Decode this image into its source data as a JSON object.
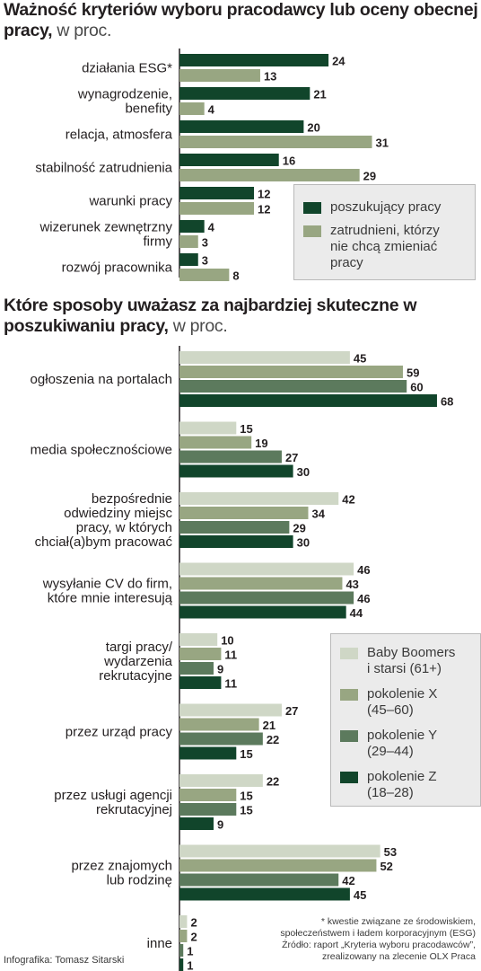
{
  "chart_data": [
    {
      "type": "bar",
      "orientation": "horizontal",
      "title": "Ważność kryteriów wyboru pracodawcy lub oceny obecnej pracy,",
      "unit": "w proc.",
      "categories": [
        "działania ESG*",
        "wynagrodzenie,\nbenefity",
        "relacja, atmosfera",
        "stabilność zatrudnienia",
        "warunki pracy",
        "wizerunek zewnętrzny\nfirmy",
        "rozwój pracownika"
      ],
      "series": [
        {
          "name": "poszukujący pracy",
          "color": "#11452b",
          "values": [
            24,
            21,
            20,
            16,
            12,
            4,
            3
          ]
        },
        {
          "name": "zatrudnieni, którzy\nnie chcą zmieniać\npracy",
          "color": "#98a682",
          "values": [
            13,
            4,
            31,
            29,
            12,
            3,
            8
          ]
        }
      ],
      "legend": "bottom-right",
      "grid": false
    },
    {
      "type": "bar",
      "orientation": "horizontal",
      "title": "Które sposoby uważasz za najbardziej skuteczne w poszukiwaniu pracy,",
      "unit": "w proc.",
      "categories": [
        "ogłoszenia na portalach",
        "media społecznościowe",
        "bezpośrednie\nodwiedziny miejsc\npracy, w których\nchciał(a)bym pracować",
        "wysyłanie CV do firm,\nktóre mnie interesują",
        "targi pracy/\nwydarzenia\nrekrutacyjne",
        "przez urząd pracy",
        "przez usługi agencji\nrekrutacyjnej",
        "przez znajomych\nlub rodzinę",
        "inne"
      ],
      "series": [
        {
          "name": "Baby Boomers\ni starsi (61+)",
          "color": "#cfd7c6",
          "values": [
            45,
            15,
            42,
            46,
            10,
            27,
            22,
            53,
            2
          ]
        },
        {
          "name": "pokolenie X\n(45–60)",
          "color": "#98a682",
          "values": [
            59,
            19,
            34,
            43,
            11,
            21,
            15,
            52,
            2
          ]
        },
        {
          "name": "pokolenie Y\n(29–44)",
          "color": "#5c7a5d",
          "values": [
            60,
            27,
            29,
            46,
            9,
            22,
            15,
            42,
            1
          ]
        },
        {
          "name": "pokolenie Z\n(18–28)",
          "color": "#11452b",
          "values": [
            68,
            30,
            30,
            44,
            11,
            15,
            9,
            45,
            1
          ]
        }
      ],
      "legend": "right",
      "grid": false
    }
  ],
  "notes": {
    "esg_footnote": "* kwestie związane ze środowiskiem,\nspołeczeństwem i ładem korporacyjnym (ESG)",
    "source": "Źródło: raport „Kryteria wyboru pracodawców”,\nzrealizowany na zlecenie OLX Praca",
    "credit": "Infografika: Tomasz Sitarski"
  }
}
